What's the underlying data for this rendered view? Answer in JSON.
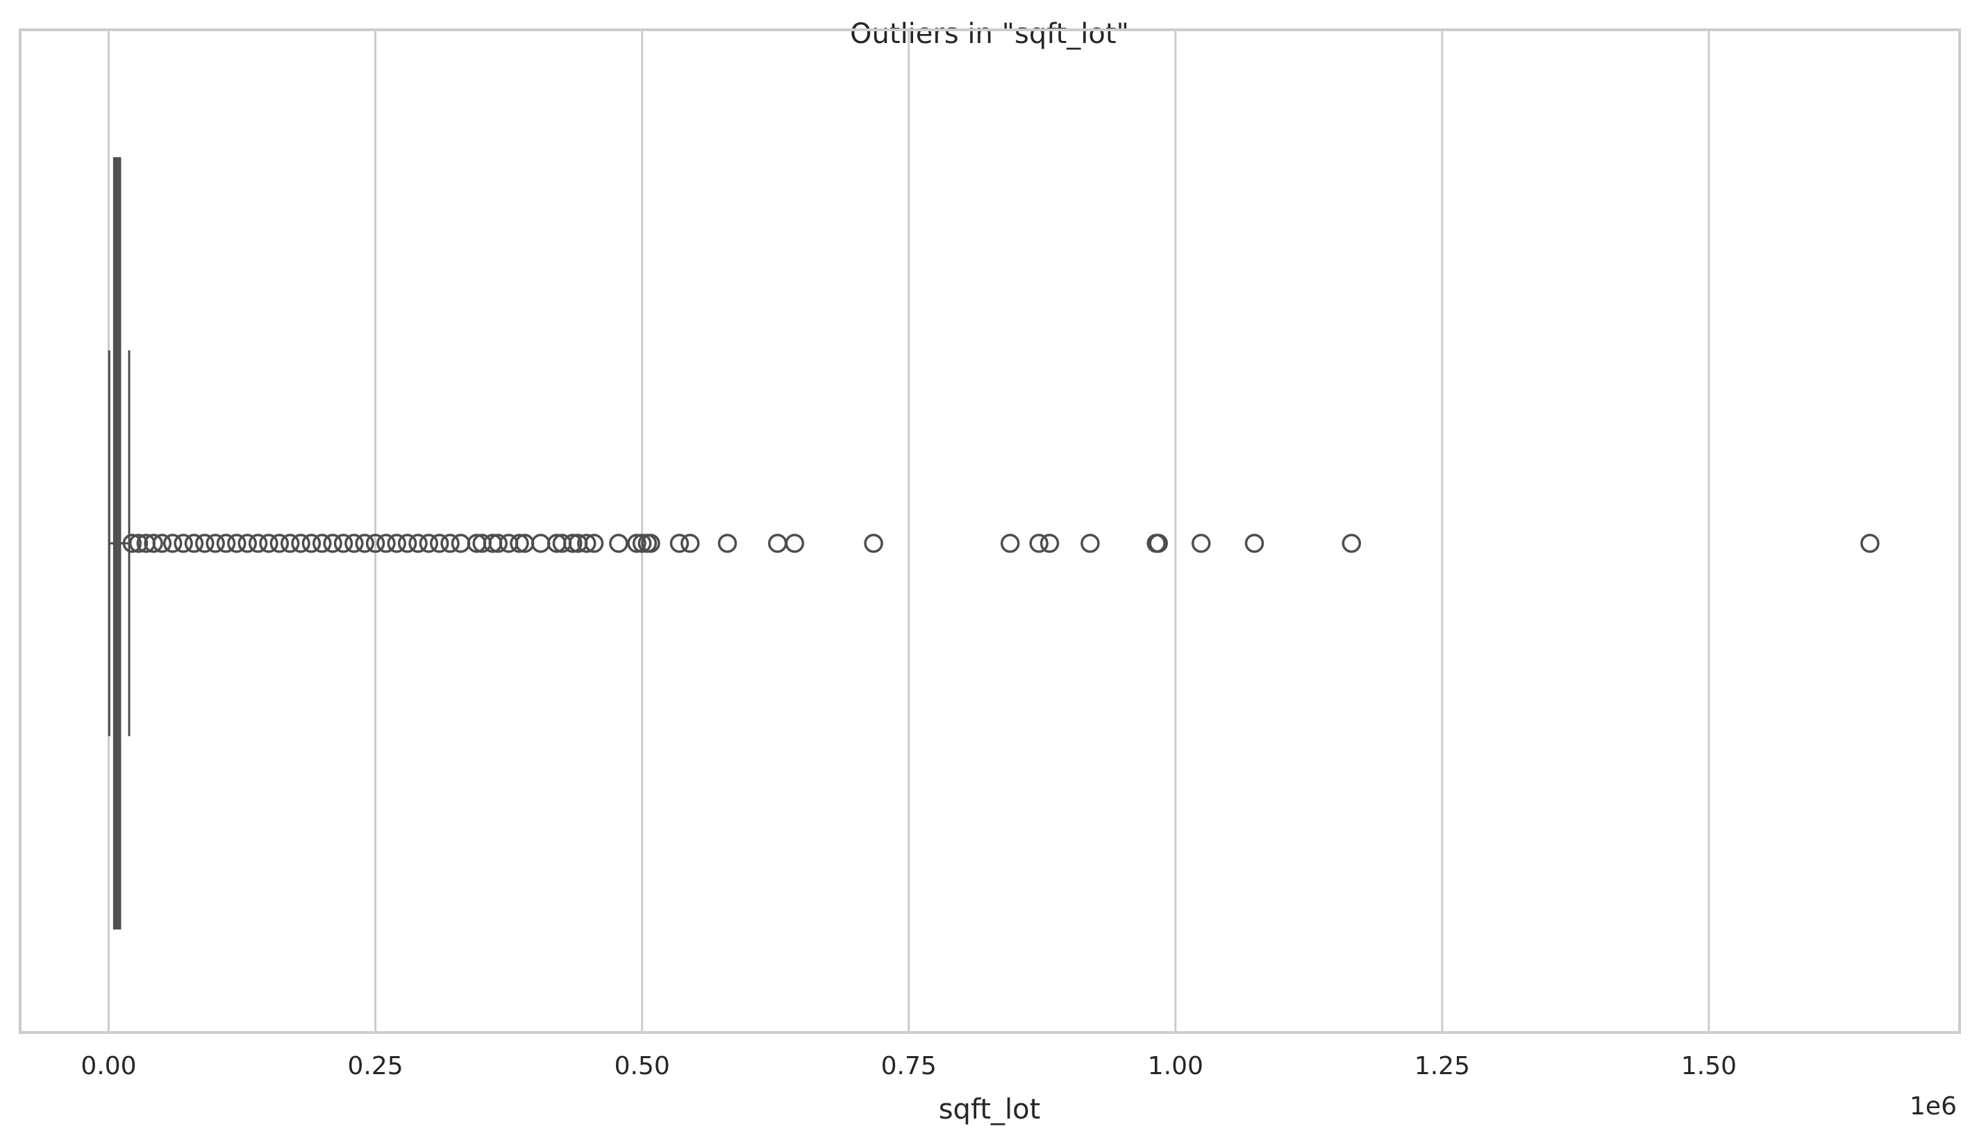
{
  "chart_data": {
    "type": "box",
    "orientation": "horizontal",
    "title": "Outliers in \"sqft_lot\"",
    "xlabel": "sqft_lot",
    "ylabel": "",
    "x_offset_label": "1e6",
    "xlim": [
      -0.083,
      1.735
    ],
    "x_ticks": [
      0.0,
      0.25,
      0.5,
      0.75,
      1.0,
      1.25,
      1.5
    ],
    "x_tick_labels": [
      "0.00",
      "0.25",
      "0.50",
      "0.75",
      "1.00",
      "1.25",
      "1.50"
    ],
    "grid": "vertical",
    "box": {
      "q1": 0.0051,
      "median": 0.0076,
      "q3": 0.0107,
      "whisker_low": 0.00052,
      "whisker_high": 0.0192
    },
    "outliers": [
      0.022,
      0.028,
      0.035,
      0.042,
      0.05,
      0.06,
      0.07,
      0.08,
      0.09,
      0.1,
      0.11,
      0.12,
      0.13,
      0.14,
      0.15,
      0.16,
      0.17,
      0.18,
      0.19,
      0.2,
      0.21,
      0.22,
      0.23,
      0.24,
      0.25,
      0.26,
      0.27,
      0.28,
      0.29,
      0.3,
      0.31,
      0.32,
      0.33,
      0.345,
      0.35,
      0.36,
      0.365,
      0.375,
      0.385,
      0.39,
      0.405,
      0.42,
      0.425,
      0.435,
      0.44,
      0.448,
      0.455,
      0.478,
      0.495,
      0.5,
      0.505,
      0.508,
      0.535,
      0.545,
      0.58,
      0.627,
      0.643,
      0.717,
      0.845,
      0.872,
      0.882,
      0.92,
      0.982,
      0.984,
      1.024,
      1.074,
      1.165,
      1.651
    ],
    "colors": {
      "box_fill": "#5a5a5a",
      "line": "#4d4d4d",
      "grid": "#cccccc",
      "frame": "#cccccc"
    }
  }
}
